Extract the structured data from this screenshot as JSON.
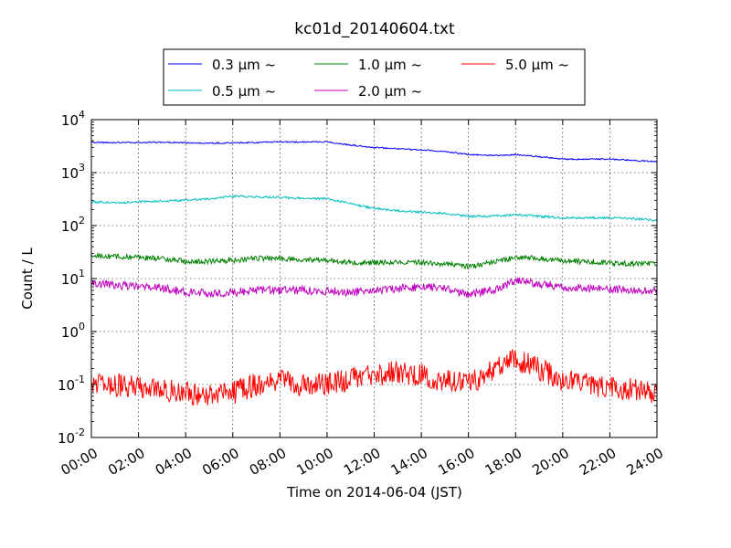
{
  "chart_data": {
    "type": "line",
    "title": "kc01d_20140604.txt",
    "xlabel": "Time on 2014-06-04 (JST)",
    "ylabel": "Count / L",
    "yscale": "log",
    "ylim": [
      0.01,
      10000
    ],
    "xlim": [
      "00:00",
      "24:00"
    ],
    "x_tick_labels": [
      "00:00",
      "02:00",
      "04:00",
      "06:00",
      "08:00",
      "10:00",
      "12:00",
      "14:00",
      "16:00",
      "18:00",
      "20:00",
      "22:00",
      "24:00"
    ],
    "y_tick_labels": [
      {
        "base": "10",
        "exp": "-2"
      },
      {
        "base": "10",
        "exp": "-1"
      },
      {
        "base": "10",
        "exp": "0"
      },
      {
        "base": "10",
        "exp": "1"
      },
      {
        "base": "10",
        "exp": "2"
      },
      {
        "base": "10",
        "exp": "3"
      },
      {
        "base": "10",
        "exp": "4"
      }
    ],
    "grid": true,
    "legend_placement": "top-center, above plot",
    "x_hours": [
      0,
      1,
      2,
      3,
      4,
      5,
      6,
      7,
      8,
      9,
      10,
      11,
      12,
      13,
      14,
      15,
      16,
      17,
      18,
      19,
      20,
      21,
      22,
      23,
      24
    ],
    "series": [
      {
        "name": "0.3 μm ~",
        "color": "#0000ff",
        "noise": 0.012,
        "values": [
          3700,
          3700,
          3700,
          3750,
          3650,
          3600,
          3650,
          3700,
          3800,
          3800,
          3800,
          3300,
          3000,
          2800,
          2700,
          2500,
          2200,
          2100,
          2200,
          2000,
          1800,
          1800,
          1800,
          1700,
          1600
        ]
      },
      {
        "name": "0.5 μm ~",
        "color": "#00bfbf",
        "noise": 0.02,
        "values": [
          280,
          270,
          280,
          290,
          300,
          320,
          360,
          350,
          340,
          330,
          320,
          260,
          210,
          190,
          180,
          170,
          150,
          150,
          160,
          150,
          140,
          140,
          140,
          135,
          125
        ]
      },
      {
        "name": "1.0 μm ~",
        "color": "#008000",
        "noise": 0.05,
        "values": [
          27,
          26,
          25,
          24,
          21,
          21,
          22,
          24,
          24,
          23,
          22,
          20,
          20,
          20,
          20,
          19,
          17,
          20,
          25,
          24,
          22,
          21,
          20,
          19,
          19
        ]
      },
      {
        "name": "2.0 μm ~",
        "color": "#bf00bf",
        "noise": 0.08,
        "values": [
          8,
          7.5,
          7,
          6.5,
          5.5,
          5.2,
          5.5,
          6,
          6,
          6,
          5.8,
          5.5,
          6,
          6.5,
          7,
          6.5,
          5,
          6,
          9,
          8,
          7,
          6.5,
          6.5,
          6,
          6
        ]
      },
      {
        "name": "5.0 μm ~",
        "color": "#ff0000",
        "noise": 0.22,
        "values": [
          0.12,
          0.1,
          0.09,
          0.08,
          0.07,
          0.06,
          0.07,
          0.1,
          0.12,
          0.1,
          0.1,
          0.13,
          0.15,
          0.17,
          0.15,
          0.12,
          0.1,
          0.18,
          0.3,
          0.2,
          0.12,
          0.1,
          0.09,
          0.08,
          0.07
        ]
      }
    ]
  }
}
